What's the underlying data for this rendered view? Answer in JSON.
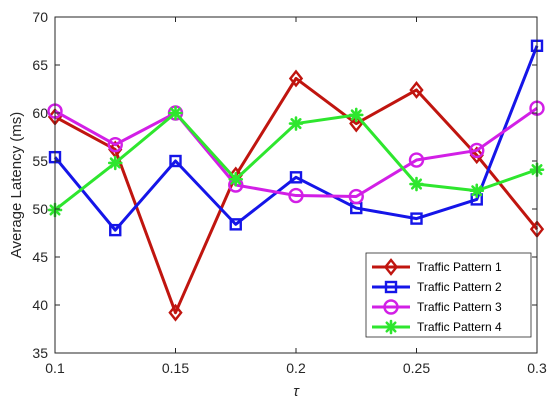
{
  "chart_data": {
    "type": "line",
    "xlabel": "τ",
    "ylabel": "Average Latency (ms)",
    "xlim": [
      0.1,
      0.3
    ],
    "ylim": [
      35,
      70
    ],
    "x": [
      0.1,
      0.125,
      0.15,
      0.175,
      0.2,
      0.225,
      0.25,
      0.275,
      0.3
    ],
    "x_ticks": [
      0.1,
      0.15,
      0.2,
      0.25,
      0.3
    ],
    "x_tick_labels": [
      "0.1",
      "0.15",
      "0.2",
      "0.25",
      "0.3"
    ],
    "y_ticks": [
      35,
      40,
      45,
      50,
      55,
      60,
      65,
      70
    ],
    "y_tick_labels": [
      "35",
      "40",
      "45",
      "50",
      "55",
      "60",
      "65",
      "70"
    ],
    "grid": false,
    "legend_position": "bottom-right",
    "series": [
      {
        "name": "Traffic Pattern 1",
        "color": "#c0150f",
        "marker": "diamond",
        "values": [
          59.6,
          56.2,
          39.2,
          53.5,
          63.6,
          58.9,
          62.4,
          55.6,
          47.9
        ]
      },
      {
        "name": "Traffic Pattern 2",
        "color": "#1515e8",
        "marker": "square",
        "values": [
          55.4,
          47.8,
          55.0,
          48.4,
          53.3,
          50.1,
          49.0,
          51.0,
          67.0
        ]
      },
      {
        "name": "Traffic Pattern 3",
        "color": "#d21fe6",
        "marker": "circle",
        "values": [
          60.2,
          56.7,
          60.0,
          52.5,
          51.4,
          51.3,
          55.1,
          56.1,
          60.5
        ]
      },
      {
        "name": "Traffic Pattern 4",
        "color": "#2ee62e",
        "marker": "asterisk",
        "values": [
          49.9,
          54.8,
          60.0,
          53.1,
          58.9,
          59.8,
          52.6,
          51.9,
          54.1
        ]
      }
    ]
  }
}
